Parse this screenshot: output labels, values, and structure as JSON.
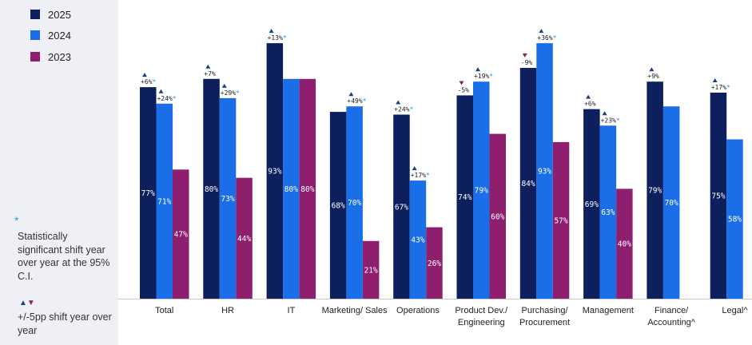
{
  "legend": [
    {
      "label": "2025",
      "color": "#0d1f5c"
    },
    {
      "label": "2024",
      "color": "#1a6fe8"
    },
    {
      "label": "2023",
      "color": "#8e1f6e"
    }
  ],
  "notes": {
    "significance_symbol": "*",
    "significance_text": "Statistically significant shift year over year at the 95% C.I.",
    "shift_symbol_up": "▲",
    "shift_symbol_down": "▼",
    "shift_text": "+/-5pp shift year over year"
  },
  "chart_data": {
    "type": "bar",
    "categories": [
      [
        "Total"
      ],
      [
        "HR"
      ],
      [
        "IT"
      ],
      [
        "Marketing/ Sales"
      ],
      [
        "Operations"
      ],
      [
        "Product Dev./",
        "Engineering"
      ],
      [
        "Purchasing/",
        "Procurement"
      ],
      [
        "Management"
      ],
      [
        "Finance/",
        "Accounting^"
      ],
      [
        "Legal^"
      ]
    ],
    "series": [
      {
        "name": "2025",
        "color": "#0d1f5c",
        "values": [
          77,
          80,
          93,
          68,
          67,
          74,
          84,
          69,
          79,
          75
        ]
      },
      {
        "name": "2024",
        "color": "#1a6fe8",
        "values": [
          71,
          73,
          80,
          70,
          43,
          79,
          93,
          63,
          70,
          58
        ]
      },
      {
        "name": "2023",
        "color": "#8e1f6e",
        "values": [
          47,
          44,
          80,
          21,
          26,
          60,
          57,
          40,
          null,
          null
        ]
      }
    ],
    "value_suffix": "%",
    "ylim": [
      0,
      100
    ],
    "changes": [
      {
        "category": 0,
        "series": 0,
        "text": "+6%",
        "dir": "up",
        "sig": true
      },
      {
        "category": 0,
        "series": 1,
        "text": "+24%",
        "dir": "up",
        "sig": true
      },
      {
        "category": 1,
        "series": 0,
        "text": "+7%",
        "dir": "up",
        "sig": false
      },
      {
        "category": 1,
        "series": 1,
        "text": "+29%",
        "dir": "up",
        "sig": true
      },
      {
        "category": 2,
        "series": 0,
        "text": "+13%",
        "dir": "up",
        "sig": true
      },
      {
        "category": 3,
        "series": 1,
        "text": "+49%",
        "dir": "up",
        "sig": true
      },
      {
        "category": 4,
        "series": 0,
        "text": "+24%",
        "dir": "up",
        "sig": true
      },
      {
        "category": 4,
        "series": 1,
        "text": "+17%",
        "dir": "up",
        "sig": true
      },
      {
        "category": 5,
        "series": 0,
        "text": "-5%",
        "dir": "down",
        "sig": false
      },
      {
        "category": 5,
        "series": 1,
        "text": "+19%",
        "dir": "up",
        "sig": true
      },
      {
        "category": 6,
        "series": 0,
        "text": "-9%",
        "dir": "down",
        "sig": false
      },
      {
        "category": 6,
        "series": 1,
        "text": "+36%",
        "dir": "up",
        "sig": true
      },
      {
        "category": 7,
        "series": 0,
        "text": "+6%",
        "dir": "up",
        "sig": false
      },
      {
        "category": 7,
        "series": 1,
        "text": "+23%",
        "dir": "up",
        "sig": true
      },
      {
        "category": 8,
        "series": 0,
        "text": "+9%",
        "dir": "up",
        "sig": false
      },
      {
        "category": 9,
        "series": 0,
        "text": "+17%",
        "dir": "up",
        "sig": true
      }
    ]
  }
}
